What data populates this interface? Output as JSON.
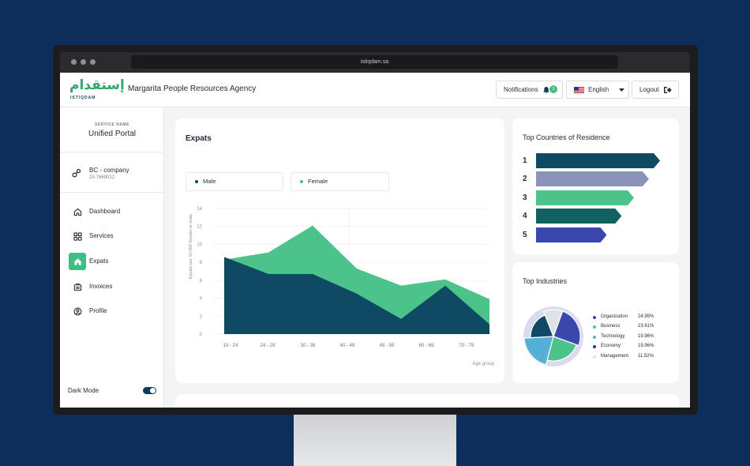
{
  "browser": {
    "url": "istiqdam.sa"
  },
  "header": {
    "logo_arabic": "إستقدام",
    "logo_english": "ISTIQDAM",
    "agency_name": "Margarita People Resources Agency",
    "notifications_label": "Notifications",
    "notifications_count": "1",
    "language_label": "English",
    "logout_label": "Logout"
  },
  "sidebar": {
    "service_label": "SERVICE NAME",
    "service_name": "Unified Portal",
    "company_name": "BC - company",
    "company_id": "15-7669012",
    "nav": [
      {
        "label": "Dashboard",
        "icon": "home-icon",
        "active": false
      },
      {
        "label": "Services",
        "icon": "grid-icon",
        "active": false
      },
      {
        "label": "Expats",
        "icon": "home-icon",
        "active": true
      },
      {
        "label": "Invoices",
        "icon": "invoice-icon",
        "active": false
      },
      {
        "label": "Profile",
        "icon": "profile-icon",
        "active": false
      }
    ],
    "dark_mode_label": "Dark Mode",
    "dark_mode_on": true
  },
  "expats_card": {
    "title": "Expats",
    "legend": [
      "Male",
      "Female"
    ]
  },
  "countries_card": {
    "title": "Top Countries of Residence",
    "ranks": [
      "1",
      "2",
      "3",
      "4",
      "5"
    ]
  },
  "industries_card": {
    "title": "Top Industries",
    "items": [
      {
        "name": "Organization",
        "value": "24.95%"
      },
      {
        "name": "Business",
        "value": "23.61%"
      },
      {
        "name": "Technology",
        "value": "19.96%"
      },
      {
        "name": "Economy",
        "value": "19.96%"
      },
      {
        "name": "Management",
        "value": "11.52%"
      }
    ]
  },
  "colors": {
    "male": "#0f4a63",
    "female": "#4cc38a",
    "accent": "#3dbf84",
    "organization": "#3a47ad",
    "business": "#4cc38a",
    "technology": "#55b0d8",
    "economy": "#0f4a63",
    "management": "#dfe3e8"
  },
  "chart_data": [
    {
      "type": "area",
      "categories": [
        "19 - 24",
        "24 - 29",
        "30 - 39",
        "40 - 49",
        "45 - 59",
        "60 - 69",
        "70 - 79"
      ],
      "ylabel": "Expats per 10,000 female or male",
      "xlabel": "Age group",
      "ylim": [
        0,
        14
      ],
      "yticks": [
        0,
        2,
        4,
        6,
        8,
        10,
        12,
        14
      ],
      "series": [
        {
          "name": "Male",
          "values": [
            8.6,
            6.7,
            6.7,
            4.5,
            1.7,
            5.4,
            1.1
          ]
        },
        {
          "name": "Female",
          "values": [
            8.3,
            9.1,
            12.1,
            7.3,
            5.4,
            6.1,
            3.9
          ]
        }
      ],
      "grid": true
    },
    {
      "type": "bar",
      "orientation": "horizontal",
      "categories": [
        "1",
        "2",
        "3",
        "4",
        "5"
      ],
      "values": [
        100,
        91,
        79,
        69,
        57
      ],
      "colors": [
        "#0f4a63",
        "#8a93b8",
        "#4cc38a",
        "#136060",
        "#3a47ad"
      ]
    },
    {
      "type": "pie",
      "categories": [
        "Organization",
        "Business",
        "Technology",
        "Economy",
        "Management"
      ],
      "values": [
        24.95,
        23.61,
        19.96,
        19.96,
        11.52
      ]
    }
  ]
}
